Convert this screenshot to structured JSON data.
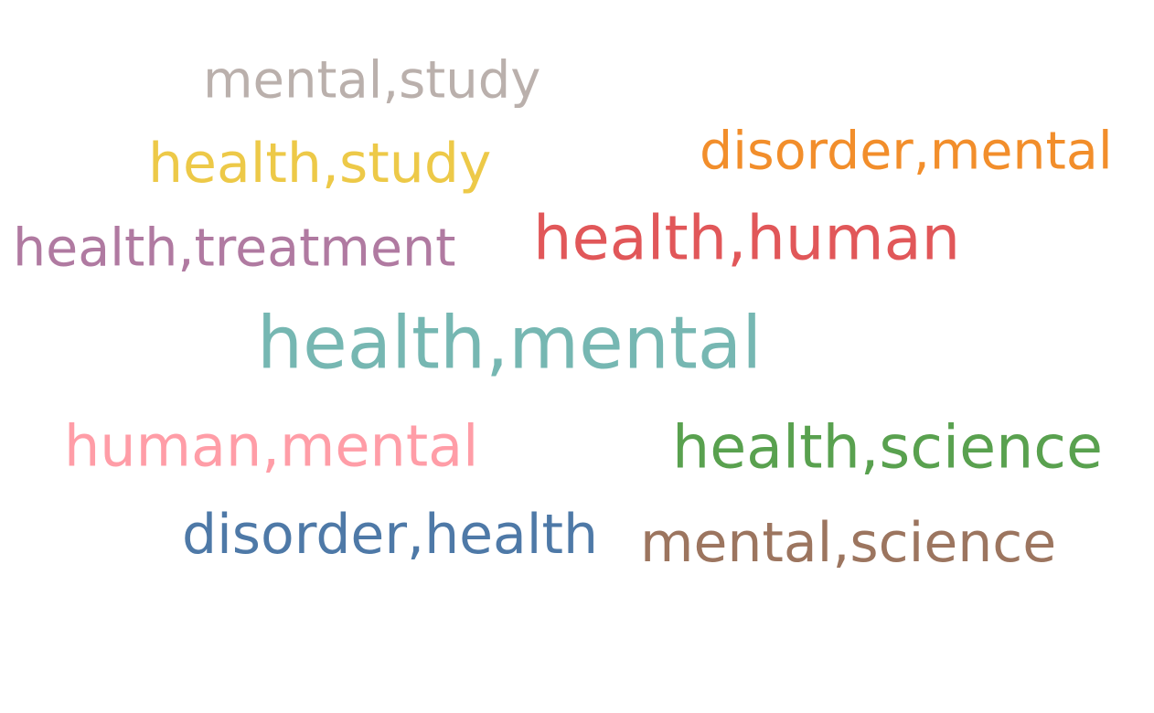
{
  "words": [
    {
      "text": "mental,study",
      "color": "#bab0ac"
    },
    {
      "text": "disorder,mental",
      "color": "#f28e2b"
    },
    {
      "text": "health,study",
      "color": "#edc948"
    },
    {
      "text": "health,human",
      "color": "#e15759"
    },
    {
      "text": "health,treatment",
      "color": "#b07aa1"
    },
    {
      "text": "health,mental",
      "color": "#76b7b2"
    },
    {
      "text": "human,mental",
      "color": "#ff9da7"
    },
    {
      "text": "health,science",
      "color": "#59a14f"
    },
    {
      "text": "disorder,health",
      "color": "#4e79a7"
    },
    {
      "text": "mental,science",
      "color": "#9c755f"
    }
  ]
}
